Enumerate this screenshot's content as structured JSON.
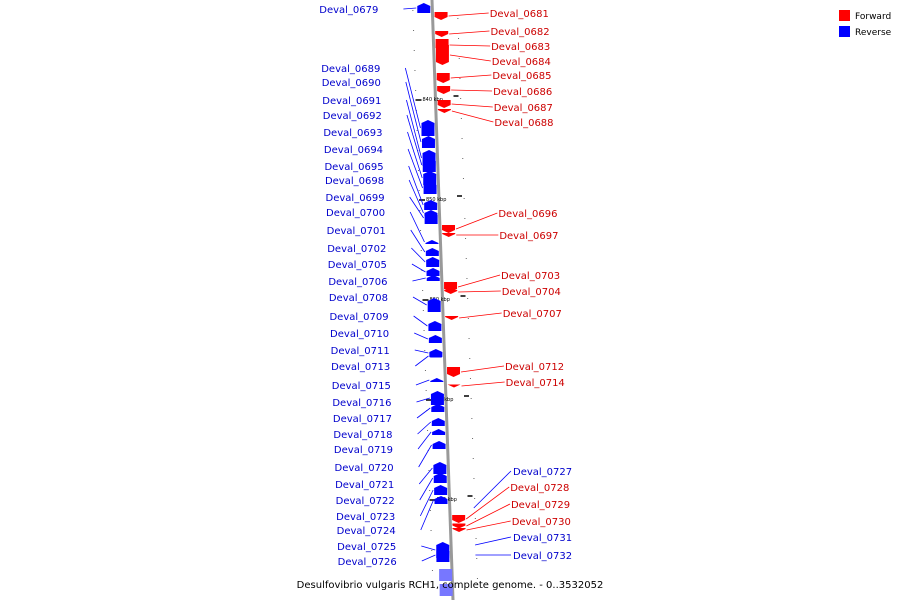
{
  "legend": {
    "forward_label": "Forward",
    "reverse_label": "Reverse",
    "forward_color": "#ff0000",
    "reverse_color": "#0000ff"
  },
  "caption": "Desulfovibrio vulgaris RCH1, complete genome. - 0..3532052",
  "colors": {
    "backbone": "#999999",
    "forward_label": "#cc0000",
    "reverse_label": "#0000cc",
    "forward_line": "#ff0000",
    "reverse_line": "#0000ff"
  },
  "ticks": [
    "840 kbp",
    "850 kbp",
    "860 kbp",
    "870 kbp",
    "880 kbp"
  ],
  "forward_genes": [
    "Deval_0681",
    "Deval_0682",
    "Deval_0683",
    "Deval_0684",
    "Deval_0685",
    "Deval_0686",
    "Deval_0687",
    "Deval_0688",
    "Deval_0696",
    "Deval_0697",
    "Deval_0703",
    "Deval_0704",
    "Deval_0707",
    "Deval_0712",
    "Deval_0714",
    "Deval_0728",
    "Deval_0729",
    "Deval_0730"
  ],
  "reverse_genes_left": [
    "Deval_0679",
    "Deval_0689",
    "Deval_0690",
    "Deval_0691",
    "Deval_0692",
    "Deval_0693",
    "Deval_0694",
    "Deval_0695",
    "Deval_0698",
    "Deval_0699",
    "Deval_0700",
    "Deval_0701",
    "Deval_0702",
    "Deval_0705",
    "Deval_0706",
    "Deval_0708",
    "Deval_0709",
    "Deval_0710",
    "Deval_0711",
    "Deval_0713",
    "Deval_0715",
    "Deval_0716",
    "Deval_0717",
    "Deval_0718",
    "Deval_0719",
    "Deval_0720",
    "Deval_0721",
    "Deval_0722",
    "Deval_0723",
    "Deval_0724",
    "Deval_0725",
    "Deval_0726"
  ],
  "reverse_genes_right": [
    "Deval_0727",
    "Deval_0731",
    "Deval_0732"
  ]
}
